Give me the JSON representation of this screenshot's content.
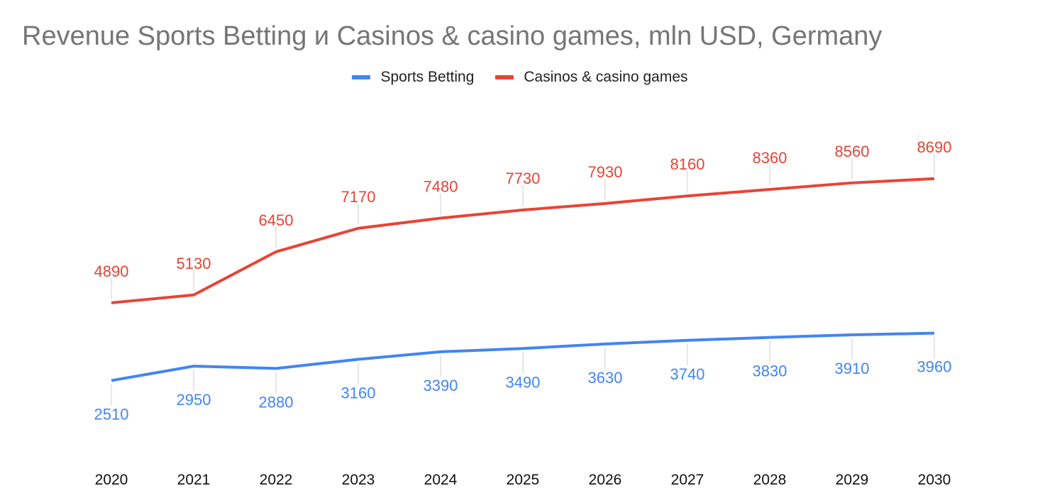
{
  "chart_data": {
    "type": "line",
    "title": "Revenue Sports Betting и Casinos & casino games, mln USD, Germany",
    "xlabel": "",
    "ylabel": "",
    "ylim": [
      0,
      10000
    ],
    "grid": false,
    "legend_position": "top-center",
    "x": [
      "2020",
      "2021",
      "2022",
      "2023",
      "2024",
      "2025",
      "2026",
      "2027",
      "2028",
      "2029",
      "2030"
    ],
    "series": [
      {
        "name": "Sports Betting",
        "color": "#4285f4",
        "label_position": "below",
        "values": [
          2510,
          2950,
          2880,
          3160,
          3390,
          3490,
          3630,
          3740,
          3830,
          3910,
          3960
        ]
      },
      {
        "name": "Casinos & casino games",
        "color": "#ea4335",
        "label_position": "above",
        "values": [
          4890,
          5130,
          6450,
          7170,
          7480,
          7730,
          7930,
          8160,
          8360,
          8560,
          8690
        ]
      }
    ]
  }
}
